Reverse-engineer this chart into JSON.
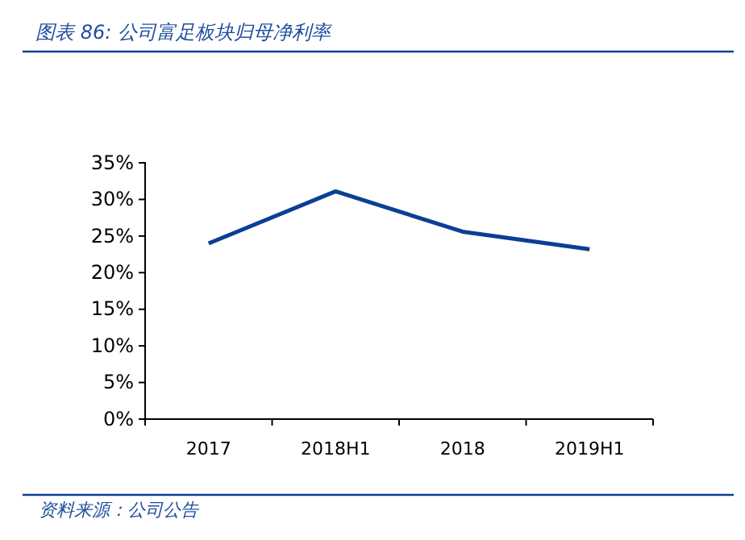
{
  "chart_data": {
    "type": "line",
    "title": "图表 86: 公司富足板块归母净利率",
    "annotations": [
      "资料来源：公司公告"
    ],
    "categories": [
      "2017",
      "2018H1",
      "2018",
      "2019H1"
    ],
    "series": [
      {
        "color": "#0b3f94",
        "values": [
          24.0,
          31.1,
          25.6,
          23.2
        ]
      }
    ],
    "ylim": [
      0,
      35
    ],
    "yticks": [
      {
        "value": 0,
        "label": "0%"
      },
      {
        "value": 5,
        "label": "5%"
      },
      {
        "value": 10,
        "label": "10%"
      },
      {
        "value": 15,
        "label": "15%"
      },
      {
        "value": 20,
        "label": "20%"
      },
      {
        "value": 25,
        "label": "25%"
      },
      {
        "value": 30,
        "label": "30%"
      },
      {
        "value": 35,
        "label": "35%"
      }
    ],
    "grid": false,
    "legend": false,
    "marker": "none",
    "line_style": "solid"
  }
}
